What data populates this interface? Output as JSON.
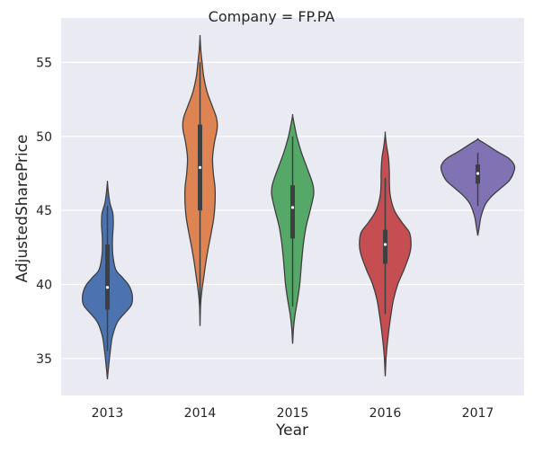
{
  "chart_data": {
    "type": "violin",
    "title": "Company = FP.PA",
    "xlabel": "Year",
    "ylabel": "AdjustedSharePrice",
    "ylim": [
      32.5,
      58
    ],
    "yticks": [
      35,
      40,
      45,
      50,
      55
    ],
    "grid": true,
    "categories": [
      "2013",
      "2014",
      "2015",
      "2016",
      "2017"
    ],
    "colors": [
      "#4c72b0",
      "#dd8452",
      "#55a868",
      "#c44e52",
      "#8172b3"
    ],
    "violins": [
      {
        "category": "2013",
        "median": 39.8,
        "q1": 38.3,
        "q3": 42.7,
        "whisker_low": 35.5,
        "whisker_high": 45.3,
        "profile": [
          [
            33.6,
            0.0
          ],
          [
            34.5,
            0.03
          ],
          [
            35.5,
            0.07
          ],
          [
            36.5,
            0.12
          ],
          [
            37.5,
            0.25
          ],
          [
            38.5,
            0.55
          ],
          [
            39.0,
            0.6
          ],
          [
            39.5,
            0.58
          ],
          [
            40.0,
            0.5
          ],
          [
            40.5,
            0.35
          ],
          [
            41.0,
            0.2
          ],
          [
            42.0,
            0.13
          ],
          [
            43.0,
            0.12
          ],
          [
            44.0,
            0.14
          ],
          [
            44.8,
            0.13
          ],
          [
            45.5,
            0.06
          ],
          [
            46.3,
            0.02
          ],
          [
            46.9,
            0.0
          ]
        ]
      },
      {
        "category": "2014",
        "median": 47.9,
        "q1": 45.0,
        "q3": 50.8,
        "whisker_low": 38.0,
        "whisker_high": 55.0,
        "profile": [
          [
            37.2,
            0.0
          ],
          [
            38.5,
            0.01
          ],
          [
            39.5,
            0.04
          ],
          [
            40.5,
            0.09
          ],
          [
            41.5,
            0.14
          ],
          [
            42.5,
            0.2
          ],
          [
            43.5,
            0.27
          ],
          [
            44.5,
            0.33
          ],
          [
            45.5,
            0.36
          ],
          [
            46.5,
            0.36
          ],
          [
            47.5,
            0.32
          ],
          [
            48.5,
            0.3
          ],
          [
            49.5,
            0.34
          ],
          [
            50.5,
            0.41
          ],
          [
            51.2,
            0.4
          ],
          [
            52.0,
            0.3
          ],
          [
            53.0,
            0.17
          ],
          [
            54.0,
            0.09
          ],
          [
            55.0,
            0.05
          ],
          [
            55.8,
            0.02
          ],
          [
            56.7,
            0.0
          ]
        ]
      },
      {
        "category": "2015",
        "median": 45.2,
        "q1": 43.1,
        "q3": 46.7,
        "whisker_low": 38.5,
        "whisker_high": 50.0,
        "profile": [
          [
            36.0,
            0.0
          ],
          [
            37.0,
            0.02
          ],
          [
            38.0,
            0.06
          ],
          [
            39.0,
            0.12
          ],
          [
            40.0,
            0.17
          ],
          [
            41.0,
            0.2
          ],
          [
            42.0,
            0.23
          ],
          [
            43.0,
            0.27
          ],
          [
            44.0,
            0.33
          ],
          [
            45.0,
            0.42
          ],
          [
            46.0,
            0.5
          ],
          [
            46.5,
            0.5
          ],
          [
            47.0,
            0.46
          ],
          [
            48.0,
            0.33
          ],
          [
            49.0,
            0.2
          ],
          [
            50.0,
            0.1
          ],
          [
            50.8,
            0.04
          ],
          [
            51.4,
            0.0
          ]
        ]
      },
      {
        "category": "2016",
        "median": 42.7,
        "q1": 41.4,
        "q3": 43.7,
        "whisker_low": 38.0,
        "whisker_high": 47.2,
        "profile": [
          [
            33.8,
            0.0
          ],
          [
            35.0,
            0.02
          ],
          [
            36.0,
            0.05
          ],
          [
            37.0,
            0.09
          ],
          [
            38.0,
            0.14
          ],
          [
            39.0,
            0.2
          ],
          [
            40.0,
            0.3
          ],
          [
            41.0,
            0.45
          ],
          [
            42.0,
            0.58
          ],
          [
            42.7,
            0.62
          ],
          [
            43.5,
            0.58
          ],
          [
            44.2,
            0.4
          ],
          [
            45.0,
            0.22
          ],
          [
            46.0,
            0.12
          ],
          [
            47.0,
            0.1
          ],
          [
            47.5,
            0.1
          ],
          [
            48.5,
            0.08
          ],
          [
            49.4,
            0.03
          ],
          [
            50.2,
            0.0
          ]
        ]
      },
      {
        "category": "2017",
        "median": 47.5,
        "q1": 46.8,
        "q3": 48.1,
        "whisker_low": 45.3,
        "whisker_high": 48.9,
        "profile": [
          [
            43.3,
            0.0
          ],
          [
            43.8,
            0.03
          ],
          [
            44.5,
            0.07
          ],
          [
            45.0,
            0.12
          ],
          [
            45.5,
            0.2
          ],
          [
            46.0,
            0.35
          ],
          [
            46.5,
            0.55
          ],
          [
            47.0,
            0.75
          ],
          [
            47.5,
            0.85
          ],
          [
            48.0,
            0.88
          ],
          [
            48.5,
            0.75
          ],
          [
            49.0,
            0.45
          ],
          [
            49.5,
            0.18
          ],
          [
            49.8,
            0.0
          ]
        ]
      }
    ]
  }
}
